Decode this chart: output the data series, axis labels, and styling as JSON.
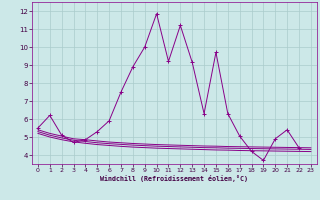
{
  "xlabel": "Windchill (Refroidissement éolien,°C)",
  "background_color": "#cce8e8",
  "grid_color": "#aacccc",
  "line_color": "#880088",
  "xlim": [
    -0.5,
    23.5
  ],
  "ylim": [
    3.5,
    12.5
  ],
  "yticks": [
    4,
    5,
    6,
    7,
    8,
    9,
    10,
    11,
    12
  ],
  "xticks": [
    0,
    1,
    2,
    3,
    4,
    5,
    6,
    7,
    8,
    9,
    10,
    11,
    12,
    13,
    14,
    15,
    16,
    17,
    18,
    19,
    20,
    21,
    22,
    23
  ],
  "series1_x": [
    0,
    1,
    2,
    3,
    4,
    5,
    6,
    7,
    8,
    9,
    10,
    11,
    12,
    13,
    14,
    15,
    16,
    17,
    18,
    19,
    20,
    21,
    22
  ],
  "series1_y": [
    5.5,
    6.2,
    5.1,
    4.7,
    4.85,
    5.3,
    5.9,
    7.5,
    8.9,
    10.0,
    11.85,
    9.2,
    11.2,
    9.15,
    6.3,
    9.7,
    6.3,
    5.05,
    4.2,
    3.7,
    4.9,
    5.4,
    4.4
  ],
  "series2_x": [
    0,
    1,
    2,
    3,
    4,
    5,
    6,
    7,
    8,
    9,
    10,
    11,
    12,
    13,
    14,
    15,
    16,
    17,
    18,
    19,
    20,
    21,
    22,
    23
  ],
  "series2_y": [
    5.4,
    5.2,
    5.05,
    4.9,
    4.85,
    4.78,
    4.72,
    4.68,
    4.64,
    4.61,
    4.58,
    4.56,
    4.54,
    4.52,
    4.5,
    4.49,
    4.47,
    4.46,
    4.45,
    4.44,
    4.43,
    4.42,
    4.41,
    4.4
  ],
  "series3_x": [
    0,
    1,
    2,
    3,
    4,
    5,
    6,
    7,
    8,
    9,
    10,
    11,
    12,
    13,
    14,
    15,
    16,
    17,
    18,
    19,
    20,
    21,
    22,
    23
  ],
  "series3_y": [
    5.3,
    5.1,
    4.95,
    4.82,
    4.75,
    4.68,
    4.63,
    4.59,
    4.55,
    4.52,
    4.49,
    4.47,
    4.45,
    4.43,
    4.41,
    4.4,
    4.38,
    4.37,
    4.36,
    4.35,
    4.34,
    4.33,
    4.32,
    4.31
  ],
  "series4_x": [
    0,
    1,
    2,
    3,
    4,
    5,
    6,
    7,
    8,
    9,
    10,
    11,
    12,
    13,
    14,
    15,
    16,
    17,
    18,
    19,
    20,
    21,
    22,
    23
  ],
  "series4_y": [
    5.2,
    5.0,
    4.85,
    4.73,
    4.65,
    4.58,
    4.53,
    4.48,
    4.44,
    4.41,
    4.38,
    4.36,
    4.34,
    4.32,
    4.3,
    4.28,
    4.27,
    4.25,
    4.24,
    4.23,
    4.22,
    4.21,
    4.2,
    4.19
  ]
}
